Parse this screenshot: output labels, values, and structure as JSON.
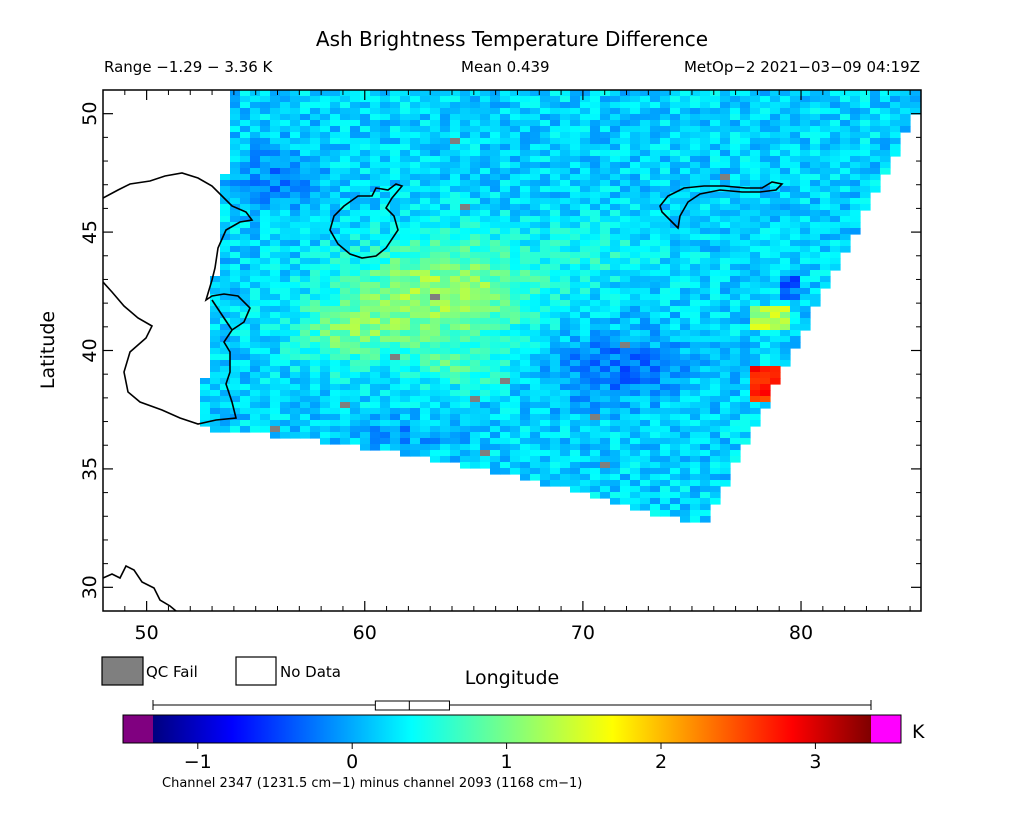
{
  "header": {
    "title": "Ash Brightness Temperature Difference",
    "range": "Range −1.29 − 3.36 K",
    "mean": "Mean 0.439",
    "satellite_time": "MetOp−2 2021−03−09 04:19Z"
  },
  "map": {
    "xlabel": "Longitude",
    "ylabel": "Latitude",
    "lon_range": [
      48,
      85.5
    ],
    "lat_range": [
      29,
      51
    ],
    "lon_ticks": [
      50,
      60,
      70,
      80
    ],
    "lat_ticks": [
      30,
      35,
      40,
      45,
      50
    ],
    "lon_tick_labels": [
      "50",
      "60",
      "70",
      "80"
    ],
    "lat_tick_labels": [
      "30",
      "35",
      "40",
      "45",
      "50"
    ]
  },
  "legend": {
    "qc_fail_label": "QC Fail",
    "no_data_label": "No Data",
    "qc_fail_color": "#7f7f7f",
    "no_data_color": "#ffffff"
  },
  "colorbar": {
    "unit": "K",
    "range": [
      -1.29,
      3.36
    ],
    "ticks": [
      -1,
      0,
      1,
      2,
      3
    ],
    "tick_labels": [
      "−1",
      "0",
      "1",
      "2",
      "3"
    ],
    "under_color": "#800080",
    "over_color": "#ff00ff",
    "caption": "Channel 2347 (1231.5 cm−1) minus channel 2093 (1168 cm−1)",
    "boxplot": {
      "min": -1.29,
      "q1": 0.15,
      "median": 0.37,
      "q3": 0.63,
      "max": 3.36
    }
  }
}
